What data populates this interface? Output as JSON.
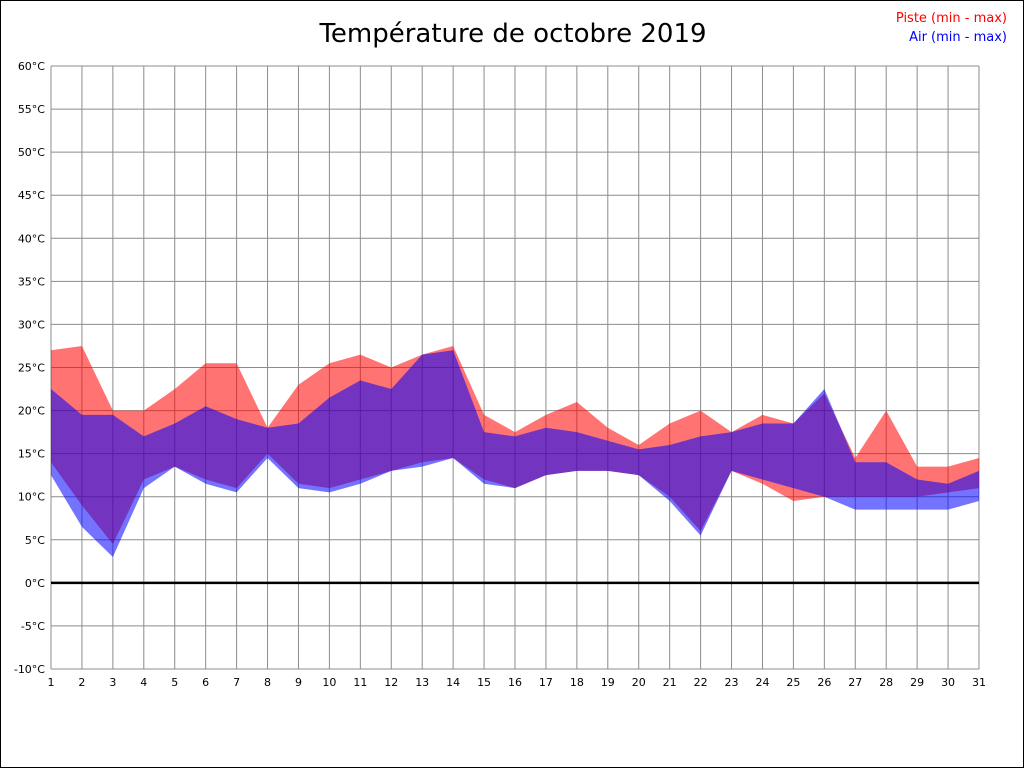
{
  "title": "Température de octobre 2019",
  "legend": [
    {
      "label": "Piste (min - max)",
      "color": "#ff0000"
    },
    {
      "label": "Air (min - max)",
      "color": "#0000ff"
    }
  ],
  "chart_data": {
    "type": "area",
    "title": "Température de octobre 2019",
    "xlabel": "",
    "ylabel": "",
    "ylim": [
      -10,
      60
    ],
    "y_tick_values": [
      60,
      55,
      50,
      45,
      40,
      35,
      30,
      25,
      20,
      15,
      10,
      5,
      0,
      -5,
      -10
    ],
    "y_tick_labels": [
      "60°C",
      "55°C",
      "50°C",
      "45°C",
      "40°C",
      "35°C",
      "30°C",
      "25°C",
      "20°C",
      "15°C",
      "10°C",
      "5°C",
      "0°C",
      "-5°C",
      "-10°C"
    ],
    "x": [
      1,
      2,
      3,
      4,
      5,
      6,
      7,
      8,
      9,
      10,
      11,
      12,
      13,
      14,
      15,
      16,
      17,
      18,
      19,
      20,
      21,
      22,
      23,
      24,
      25,
      26,
      27,
      28,
      29,
      30,
      31
    ],
    "grid": true,
    "zero_line": true,
    "legend_position": "top-right",
    "series": [
      {
        "name": "Piste min",
        "values": [
          14,
          9,
          4.5,
          12,
          13.5,
          12,
          11,
          15,
          11.5,
          11,
          12,
          13,
          14,
          14.5,
          12,
          11,
          12.5,
          13,
          13,
          12.5,
          10,
          6,
          13,
          11.5,
          9.5,
          10,
          10,
          10,
          10,
          10.5,
          11
        ]
      },
      {
        "name": "Piste max",
        "values": [
          27,
          27.5,
          20,
          20,
          22.5,
          25.5,
          25.5,
          18,
          23,
          25.5,
          26.5,
          25,
          26.5,
          27.5,
          19.5,
          17.5,
          19.5,
          21,
          18,
          16,
          18.5,
          20,
          17.5,
          19.5,
          18.5,
          22,
          14.5,
          20,
          13.5,
          13.5,
          14.5
        ]
      },
      {
        "name": "Air min",
        "values": [
          12.5,
          6.5,
          3,
          11,
          13.5,
          11.5,
          10.5,
          14.5,
          11,
          10.5,
          11.5,
          13,
          13.5,
          14.5,
          11.5,
          11,
          12.5,
          13,
          13,
          12.5,
          9.5,
          5.5,
          13,
          12,
          11,
          10,
          8.5,
          8.5,
          8.5,
          8.5,
          9.5
        ]
      },
      {
        "name": "Air max",
        "values": [
          22.5,
          19.5,
          19.5,
          17,
          18.5,
          20.5,
          19,
          18,
          18.5,
          21.5,
          23.5,
          22.5,
          26.5,
          27,
          17.5,
          17,
          18,
          17.5,
          16.5,
          15.5,
          16,
          17,
          17.5,
          18.5,
          18.5,
          22.5,
          14,
          14,
          12,
          11.5,
          13
        ]
      }
    ],
    "colors": {
      "piste_fill": "rgba(255,0,0,0.55)",
      "air_fill": "rgba(0,0,255,0.55)",
      "grid": "#8c8c8c",
      "zero_line": "#000000"
    }
  }
}
